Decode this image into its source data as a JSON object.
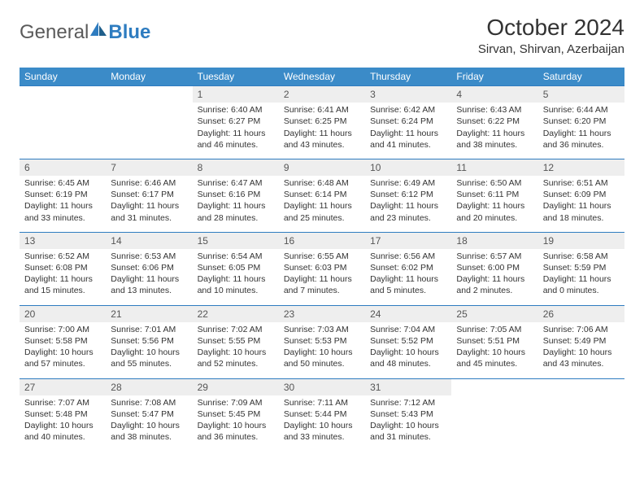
{
  "brand": {
    "part1": "General",
    "part2": "Blue"
  },
  "title": "October 2024",
  "location": "Sirvan, Shirvan, Azerbaijan",
  "colors": {
    "header_bg": "#3b8bc8",
    "header_text": "#ffffff",
    "rule": "#2e7cc0",
    "daynum_bg": "#eeeeee",
    "text": "#333333",
    "logo_gray": "#5a5a5a",
    "logo_blue": "#2e7cc0"
  },
  "typography": {
    "month_title_pt": 28,
    "location_pt": 15,
    "weekday_pt": 12,
    "daynum_pt": 12,
    "body_pt": 10.5
  },
  "weekdays": [
    "Sunday",
    "Monday",
    "Tuesday",
    "Wednesday",
    "Thursday",
    "Friday",
    "Saturday"
  ],
  "weeks": [
    [
      null,
      null,
      {
        "n": "1",
        "sr": "Sunrise: 6:40 AM",
        "ss": "Sunset: 6:27 PM",
        "d1": "Daylight: 11 hours",
        "d2": "and 46 minutes."
      },
      {
        "n": "2",
        "sr": "Sunrise: 6:41 AM",
        "ss": "Sunset: 6:25 PM",
        "d1": "Daylight: 11 hours",
        "d2": "and 43 minutes."
      },
      {
        "n": "3",
        "sr": "Sunrise: 6:42 AM",
        "ss": "Sunset: 6:24 PM",
        "d1": "Daylight: 11 hours",
        "d2": "and 41 minutes."
      },
      {
        "n": "4",
        "sr": "Sunrise: 6:43 AM",
        "ss": "Sunset: 6:22 PM",
        "d1": "Daylight: 11 hours",
        "d2": "and 38 minutes."
      },
      {
        "n": "5",
        "sr": "Sunrise: 6:44 AM",
        "ss": "Sunset: 6:20 PM",
        "d1": "Daylight: 11 hours",
        "d2": "and 36 minutes."
      }
    ],
    [
      {
        "n": "6",
        "sr": "Sunrise: 6:45 AM",
        "ss": "Sunset: 6:19 PM",
        "d1": "Daylight: 11 hours",
        "d2": "and 33 minutes."
      },
      {
        "n": "7",
        "sr": "Sunrise: 6:46 AM",
        "ss": "Sunset: 6:17 PM",
        "d1": "Daylight: 11 hours",
        "d2": "and 31 minutes."
      },
      {
        "n": "8",
        "sr": "Sunrise: 6:47 AM",
        "ss": "Sunset: 6:16 PM",
        "d1": "Daylight: 11 hours",
        "d2": "and 28 minutes."
      },
      {
        "n": "9",
        "sr": "Sunrise: 6:48 AM",
        "ss": "Sunset: 6:14 PM",
        "d1": "Daylight: 11 hours",
        "d2": "and 25 minutes."
      },
      {
        "n": "10",
        "sr": "Sunrise: 6:49 AM",
        "ss": "Sunset: 6:12 PM",
        "d1": "Daylight: 11 hours",
        "d2": "and 23 minutes."
      },
      {
        "n": "11",
        "sr": "Sunrise: 6:50 AM",
        "ss": "Sunset: 6:11 PM",
        "d1": "Daylight: 11 hours",
        "d2": "and 20 minutes."
      },
      {
        "n": "12",
        "sr": "Sunrise: 6:51 AM",
        "ss": "Sunset: 6:09 PM",
        "d1": "Daylight: 11 hours",
        "d2": "and 18 minutes."
      }
    ],
    [
      {
        "n": "13",
        "sr": "Sunrise: 6:52 AM",
        "ss": "Sunset: 6:08 PM",
        "d1": "Daylight: 11 hours",
        "d2": "and 15 minutes."
      },
      {
        "n": "14",
        "sr": "Sunrise: 6:53 AM",
        "ss": "Sunset: 6:06 PM",
        "d1": "Daylight: 11 hours",
        "d2": "and 13 minutes."
      },
      {
        "n": "15",
        "sr": "Sunrise: 6:54 AM",
        "ss": "Sunset: 6:05 PM",
        "d1": "Daylight: 11 hours",
        "d2": "and 10 minutes."
      },
      {
        "n": "16",
        "sr": "Sunrise: 6:55 AM",
        "ss": "Sunset: 6:03 PM",
        "d1": "Daylight: 11 hours",
        "d2": "and 7 minutes."
      },
      {
        "n": "17",
        "sr": "Sunrise: 6:56 AM",
        "ss": "Sunset: 6:02 PM",
        "d1": "Daylight: 11 hours",
        "d2": "and 5 minutes."
      },
      {
        "n": "18",
        "sr": "Sunrise: 6:57 AM",
        "ss": "Sunset: 6:00 PM",
        "d1": "Daylight: 11 hours",
        "d2": "and 2 minutes."
      },
      {
        "n": "19",
        "sr": "Sunrise: 6:58 AM",
        "ss": "Sunset: 5:59 PM",
        "d1": "Daylight: 11 hours",
        "d2": "and 0 minutes."
      }
    ],
    [
      {
        "n": "20",
        "sr": "Sunrise: 7:00 AM",
        "ss": "Sunset: 5:58 PM",
        "d1": "Daylight: 10 hours",
        "d2": "and 57 minutes."
      },
      {
        "n": "21",
        "sr": "Sunrise: 7:01 AM",
        "ss": "Sunset: 5:56 PM",
        "d1": "Daylight: 10 hours",
        "d2": "and 55 minutes."
      },
      {
        "n": "22",
        "sr": "Sunrise: 7:02 AM",
        "ss": "Sunset: 5:55 PM",
        "d1": "Daylight: 10 hours",
        "d2": "and 52 minutes."
      },
      {
        "n": "23",
        "sr": "Sunrise: 7:03 AM",
        "ss": "Sunset: 5:53 PM",
        "d1": "Daylight: 10 hours",
        "d2": "and 50 minutes."
      },
      {
        "n": "24",
        "sr": "Sunrise: 7:04 AM",
        "ss": "Sunset: 5:52 PM",
        "d1": "Daylight: 10 hours",
        "d2": "and 48 minutes."
      },
      {
        "n": "25",
        "sr": "Sunrise: 7:05 AM",
        "ss": "Sunset: 5:51 PM",
        "d1": "Daylight: 10 hours",
        "d2": "and 45 minutes."
      },
      {
        "n": "26",
        "sr": "Sunrise: 7:06 AM",
        "ss": "Sunset: 5:49 PM",
        "d1": "Daylight: 10 hours",
        "d2": "and 43 minutes."
      }
    ],
    [
      {
        "n": "27",
        "sr": "Sunrise: 7:07 AM",
        "ss": "Sunset: 5:48 PM",
        "d1": "Daylight: 10 hours",
        "d2": "and 40 minutes."
      },
      {
        "n": "28",
        "sr": "Sunrise: 7:08 AM",
        "ss": "Sunset: 5:47 PM",
        "d1": "Daylight: 10 hours",
        "d2": "and 38 minutes."
      },
      {
        "n": "29",
        "sr": "Sunrise: 7:09 AM",
        "ss": "Sunset: 5:45 PM",
        "d1": "Daylight: 10 hours",
        "d2": "and 36 minutes."
      },
      {
        "n": "30",
        "sr": "Sunrise: 7:11 AM",
        "ss": "Sunset: 5:44 PM",
        "d1": "Daylight: 10 hours",
        "d2": "and 33 minutes."
      },
      {
        "n": "31",
        "sr": "Sunrise: 7:12 AM",
        "ss": "Sunset: 5:43 PM",
        "d1": "Daylight: 10 hours",
        "d2": "and 31 minutes."
      },
      null,
      null
    ]
  ]
}
